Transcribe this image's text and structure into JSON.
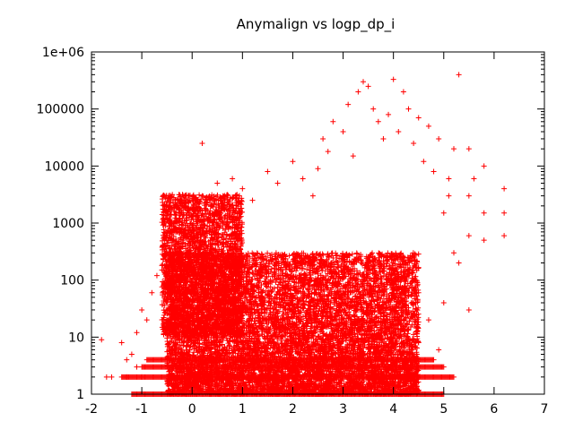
{
  "chart_data": {
    "type": "scatter",
    "title": "Anymalign vs logp_dp_i",
    "xlabel": "",
    "ylabel": "",
    "xlim": [
      -2,
      7
    ],
    "ylim": [
      1,
      1000000
    ],
    "y_scale": "log",
    "grid": false,
    "legend": "none",
    "marker": "plus",
    "color": "#ff0000",
    "x_ticks": [
      "-2",
      "-1",
      "0",
      "1",
      "2",
      "3",
      "4",
      "5",
      "6",
      "7"
    ],
    "y_ticks": [
      "1",
      "10",
      "100",
      "1000",
      "10000",
      "100000",
      "1e+06"
    ],
    "series": [
      {
        "points": [
          [
            -1.8,
            9
          ],
          [
            -1.7,
            2
          ],
          [
            -1.6,
            2
          ],
          [
            -1.4,
            8
          ],
          [
            -1.3,
            2
          ],
          [
            -1.3,
            4
          ],
          [
            -1.2,
            5
          ],
          [
            -1.1,
            3
          ],
          [
            -1.1,
            12
          ],
          [
            -1.0,
            2
          ],
          [
            -1.0,
            30
          ],
          [
            -0.9,
            20
          ],
          [
            -0.8,
            60
          ],
          [
            -0.7,
            120
          ],
          [
            -0.6,
            180
          ],
          [
            -0.5,
            300
          ],
          [
            -0.5,
            1200
          ],
          [
            -0.4,
            700
          ],
          [
            -0.3,
            2000
          ],
          [
            -0.2,
            800
          ],
          [
            -0.1,
            1500
          ],
          [
            0.0,
            2500
          ],
          [
            0.2,
            3000
          ],
          [
            0.2,
            25000
          ],
          [
            0.4,
            2000
          ],
          [
            0.5,
            5000
          ],
          [
            0.6,
            1000
          ],
          [
            0.8,
            6000
          ],
          [
            1.0,
            4000
          ],
          [
            1.2,
            2500
          ],
          [
            1.5,
            8000
          ],
          [
            1.7,
            5000
          ],
          [
            2.0,
            12000
          ],
          [
            2.2,
            6000
          ],
          [
            2.4,
            3000
          ],
          [
            2.5,
            9000
          ],
          [
            2.6,
            30000
          ],
          [
            2.7,
            18000
          ],
          [
            2.8,
            60000
          ],
          [
            3.0,
            40000
          ],
          [
            3.1,
            120000
          ],
          [
            3.2,
            15000
          ],
          [
            3.3,
            200000
          ],
          [
            3.4,
            300000
          ],
          [
            3.5,
            250000
          ],
          [
            3.6,
            100000
          ],
          [
            3.7,
            60000
          ],
          [
            3.8,
            30000
          ],
          [
            3.9,
            80000
          ],
          [
            4.0,
            330000
          ],
          [
            4.1,
            40000
          ],
          [
            4.2,
            200000
          ],
          [
            4.3,
            100000
          ],
          [
            4.4,
            25000
          ],
          [
            4.5,
            70000
          ],
          [
            4.6,
            12000
          ],
          [
            4.7,
            50000
          ],
          [
            4.8,
            8000
          ],
          [
            4.9,
            30000
          ],
          [
            5.0,
            1500
          ],
          [
            5.1,
            6000
          ],
          [
            5.2,
            20000
          ],
          [
            5.3,
            400000
          ],
          [
            5.1,
            3000
          ],
          [
            4.9,
            6
          ],
          [
            4.7,
            20
          ],
          [
            5.2,
            300
          ],
          [
            5.5,
            20000
          ],
          [
            5.5,
            3000
          ],
          [
            5.5,
            600
          ],
          [
            5.6,
            6000
          ],
          [
            5.8,
            10000
          ],
          [
            5.8,
            1500
          ],
          [
            5.8,
            500
          ],
          [
            6.2,
            4000
          ],
          [
            6.2,
            1500
          ],
          [
            6.2,
            600
          ],
          [
            5.5,
            30
          ],
          [
            5.3,
            200
          ],
          [
            5.0,
            40
          ],
          [
            4.5,
            8
          ],
          [
            4.0,
            5
          ],
          [
            3.5,
            4
          ],
          [
            2.5,
            6
          ],
          [
            1.5,
            8
          ],
          [
            0.5,
            10
          ]
        ]
      }
    ],
    "dense_band": {
      "x": [
        -0.5,
        4.5
      ],
      "y": [
        1,
        300
      ]
    },
    "row_bands": [
      {
        "y": 1,
        "x": [
          -1.2,
          5.0
        ]
      },
      {
        "y": 2,
        "x": [
          -1.4,
          5.2
        ]
      },
      {
        "y": 3,
        "x": [
          -1.0,
          5.0
        ]
      },
      {
        "y": 4,
        "x": [
          -0.9,
          4.8
        ]
      }
    ]
  }
}
